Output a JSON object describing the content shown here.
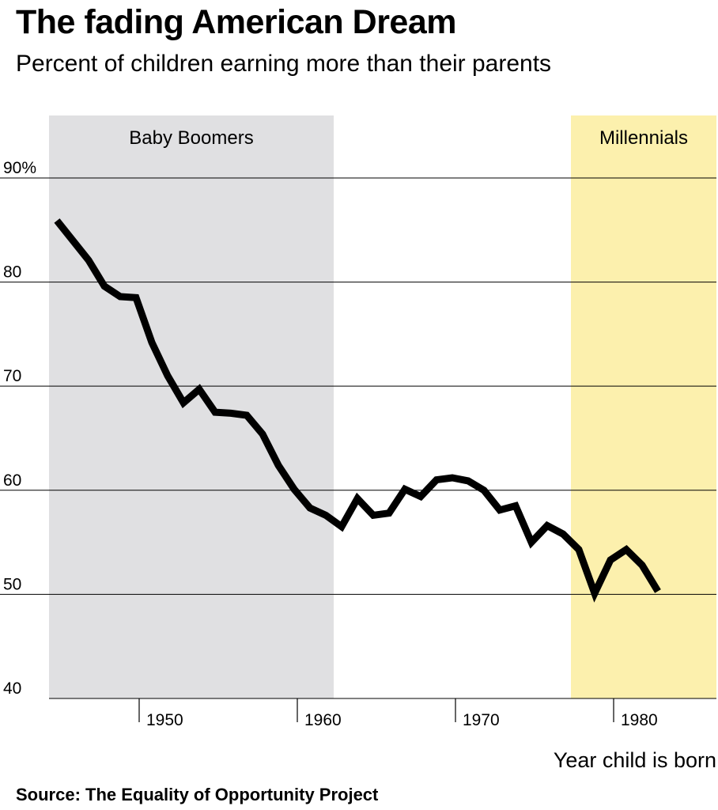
{
  "title": "The fading American Dream",
  "subtitle": "Percent of children earning more than their parents",
  "source": "Source: The Equality of Opportunity Project",
  "colors": {
    "line": "#000000",
    "baby_boomers_band": "#e0e0e2",
    "millennials_band": "#fcf0ad",
    "grid": "#000000"
  },
  "chart_data": {
    "type": "line",
    "title": "The fading American Dream",
    "subtitle": "Percent of children earning more than their parents",
    "xlabel": "Year child is born",
    "ylabel": "",
    "xlim": [
      1944.3,
      1986.5
    ],
    "ylim": [
      40,
      96
    ],
    "x_ticks": [
      {
        "value": 1950,
        "label": "1950"
      },
      {
        "value": 1960,
        "label": "1960"
      },
      {
        "value": 1970,
        "label": "1970"
      },
      {
        "value": 1980,
        "label": "1980"
      }
    ],
    "y_ticks": [
      {
        "value": 90,
        "label": "90%"
      },
      {
        "value": 80,
        "label": "80"
      },
      {
        "value": 70,
        "label": "70"
      },
      {
        "value": 60,
        "label": "60"
      },
      {
        "value": 50,
        "label": "50"
      },
      {
        "value": 40,
        "label": "40"
      }
    ],
    "grid": "horizontal",
    "bands": [
      {
        "name": "Baby Boomers",
        "from": 1944.3,
        "to": 1962.3
      },
      {
        "name": "Millennials",
        "from": 1977.3,
        "to": 1986.5
      }
    ],
    "series": [
      {
        "x": [
          1944.8,
          1945.8,
          1946.8,
          1947.8,
          1948.8,
          1949.8,
          1950.8,
          1951.8,
          1952.8,
          1953.8,
          1954.8,
          1955.8,
          1956.8,
          1957.8,
          1958.8,
          1959.8,
          1960.8,
          1961.8,
          1962.8,
          1963.8,
          1964.8,
          1965.8,
          1966.8,
          1967.8,
          1968.8,
          1969.8,
          1970.8,
          1971.8,
          1972.8,
          1973.8,
          1974.8,
          1975.8,
          1976.8,
          1977.8,
          1978.8,
          1979.8,
          1980.8,
          1981.8,
          1982.8
        ],
        "values": [
          85.9,
          84.0,
          82.1,
          79.6,
          78.6,
          78.5,
          74.2,
          71.0,
          68.4,
          69.7,
          67.5,
          67.4,
          67.2,
          65.4,
          62.4,
          60.1,
          58.3,
          57.6,
          56.5,
          59.2,
          57.6,
          57.8,
          60.1,
          59.4,
          61.0,
          61.2,
          60.9,
          60.0,
          58.1,
          58.5,
          55.0,
          56.6,
          55.8,
          54.3,
          50.1,
          53.3,
          54.3,
          52.8,
          50.3
        ]
      }
    ]
  }
}
